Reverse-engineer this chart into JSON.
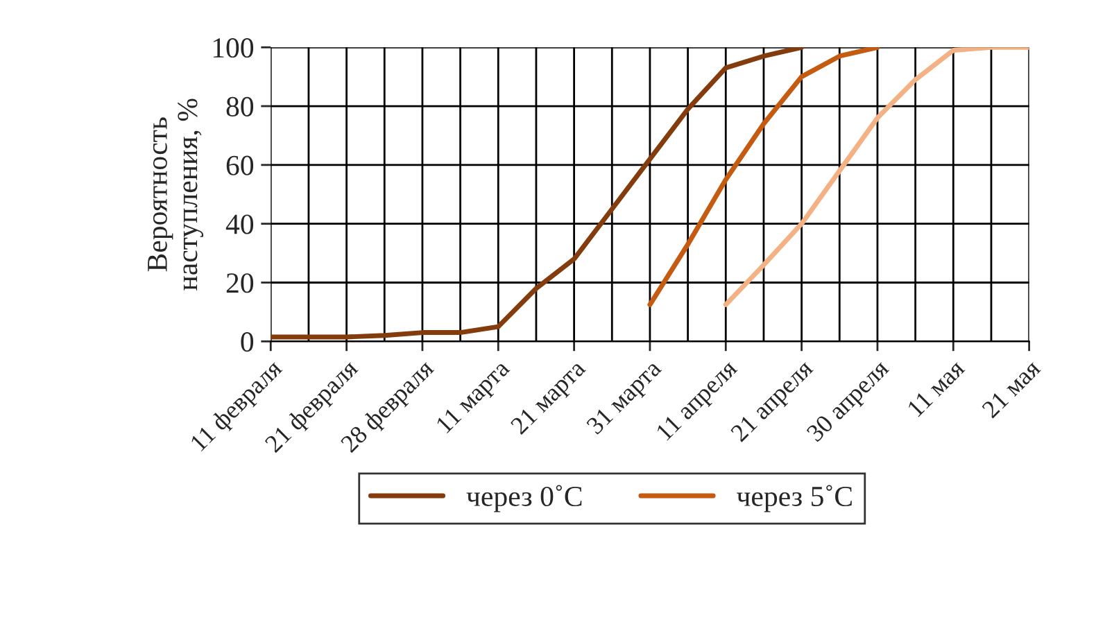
{
  "chart_data": {
    "type": "line",
    "ylabel": "Вероятность\nнаступления, %",
    "categories": [
      "11 февраля",
      null,
      "21 февраля",
      null,
      "28 февраля",
      null,
      "11 марта",
      null,
      "21 марта",
      null,
      "31 марта",
      null,
      "11 апреля",
      null,
      "21 апреля",
      null,
      "30 апреля",
      null,
      "11 мая",
      null,
      "21 мая"
    ],
    "series": [
      {
        "name": "через 0˚С",
        "color": "#843c0c",
        "values": [
          1.5,
          1.5,
          1.5,
          2,
          3,
          3,
          5,
          18,
          28,
          45,
          62,
          79,
          93,
          97,
          100,
          null,
          null,
          null,
          null,
          null,
          null
        ]
      },
      {
        "name": "через 5˚С",
        "color": "#c55a11",
        "values": [
          null,
          null,
          null,
          null,
          null,
          null,
          null,
          null,
          null,
          null,
          12.5,
          33,
          55,
          74,
          90,
          97,
          100,
          null,
          null,
          null,
          null
        ]
      },
      {
        "color": "#f4b183",
        "values": [
          null,
          null,
          null,
          null,
          null,
          null,
          null,
          null,
          null,
          null,
          null,
          null,
          12.5,
          26,
          40,
          58,
          76,
          89,
          99,
          100,
          100
        ]
      }
    ],
    "ylim": [
      0,
      100
    ],
    "yticks": [
      0,
      20,
      40,
      60,
      80,
      100
    ],
    "grid": true,
    "legend": "bottom",
    "line_style": "solid",
    "marker": "none"
  }
}
